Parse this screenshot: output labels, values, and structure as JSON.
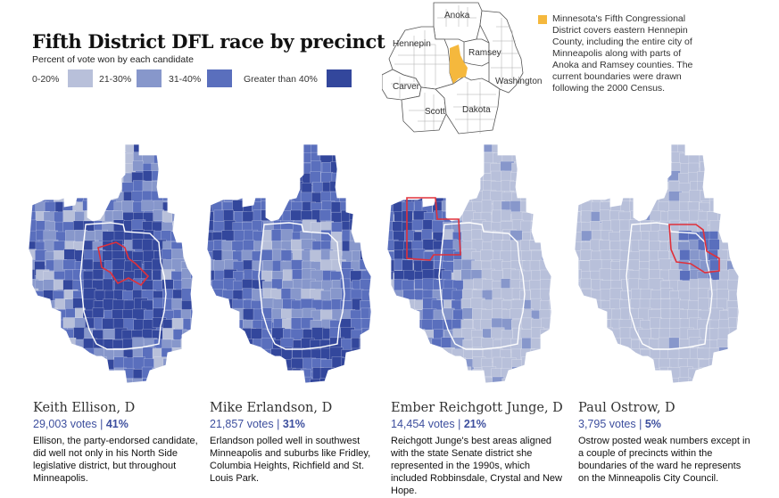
{
  "title": "Fifth District DFL race by precinct",
  "subtitle": "Percent of vote won by each candidate",
  "legend": [
    {
      "label": "0-20%",
      "color": "#b8c0da"
    },
    {
      "label": "21-30%",
      "color": "#8797cb"
    },
    {
      "label": "31-40%",
      "color": "#5a6fbd"
    },
    {
      "label": "Greater than 40%",
      "color": "#33479c"
    }
  ],
  "inset": {
    "counties": [
      "Anoka",
      "Hennepin",
      "Ramsey",
      "Washington",
      "Carver",
      "Scott",
      "Dakota"
    ],
    "highlight_color": "#f5b83d",
    "note": "Minnesota's Fifth Congressional District covers eastern Hennepin County, including the entire city of Minneapolis along with parts of Anoka and Ramsey counties. The current boundaries were drawn following the 2000 Census."
  },
  "candidates": [
    {
      "name": "Keith Ellison, D",
      "votes": "29,003 votes",
      "separator": "|",
      "pct": "41%",
      "desc": "Ellison, the party-endorsed candidate, did well not only in his North Side legislative district, but throughout Minneapolis.",
      "level": 3
    },
    {
      "name": "Mike Erlandson, D",
      "votes": "21,857 votes",
      "separator": "|",
      "pct": "31%",
      "desc": "Erlandson polled well in southwest Minneapolis and suburbs like Fridley, Columbia Heights, Richfield and St. Louis Park.",
      "level": 2
    },
    {
      "name": "Ember Reichgott Junge, D",
      "votes": "14,454 votes",
      "separator": "|",
      "pct": "21%",
      "desc": "Reichgott Junge's best areas aligned with the state Senate district she represented in the 1990s, which included Robbinsdale, Crystal and New Hope.",
      "level": 1
    },
    {
      "name": "Paul Ostrow, D",
      "votes": "3,795 votes",
      "separator": "|",
      "pct": "5%",
      "desc": "Ostrow posted weak numbers except in a couple of precincts within the boundaries of the ward he represents on the Minneapolis City Council.",
      "level": 0
    }
  ]
}
